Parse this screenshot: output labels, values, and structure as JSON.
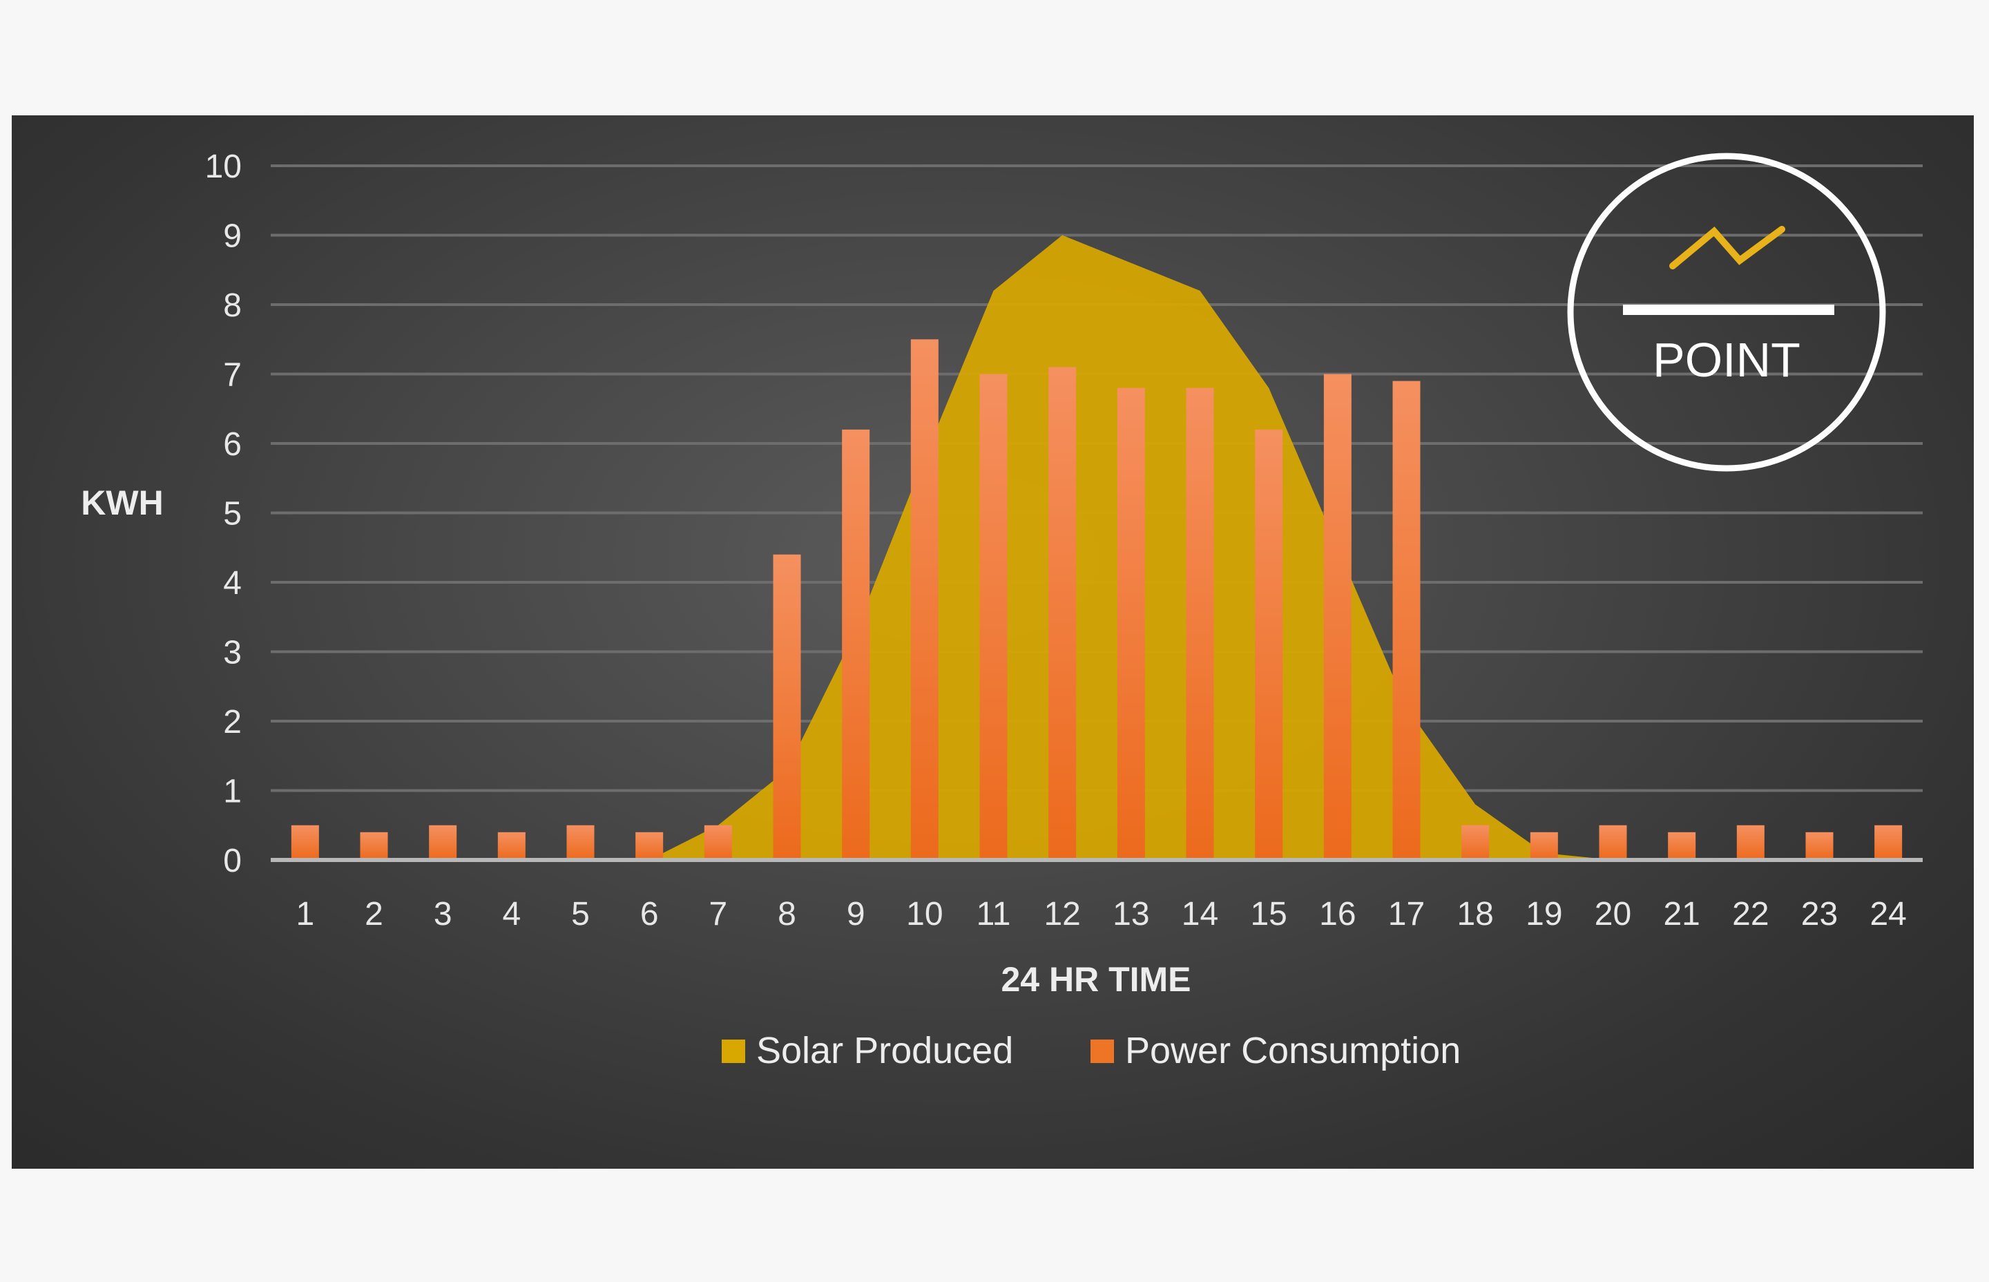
{
  "chart_data": {
    "type": "bar",
    "title": "",
    "xlabel": "24 HR TIME",
    "ylabel": "KWH",
    "ylim": [
      0,
      10
    ],
    "yticks": [
      0,
      1,
      2,
      3,
      4,
      5,
      6,
      7,
      8,
      9,
      10
    ],
    "grid": true,
    "legend_position": "bottom",
    "categories": [
      "1",
      "2",
      "3",
      "4",
      "5",
      "6",
      "7",
      "8",
      "9",
      "10",
      "11",
      "12",
      "13",
      "14",
      "15",
      "16",
      "17",
      "18",
      "19",
      "20",
      "21",
      "22",
      "23",
      "24"
    ],
    "series": [
      {
        "name": "Solar Produced",
        "kind": "area",
        "color": "#d9a800",
        "values": [
          0,
          0,
          0,
          0,
          0,
          0,
          0.5,
          1.3,
          3.3,
          5.8,
          8.2,
          9.0,
          8.6,
          8.2,
          6.8,
          4.5,
          2.2,
          0.8,
          0.1,
          0,
          0,
          0,
          0,
          0
        ]
      },
      {
        "name": "Power Consumption",
        "kind": "bar",
        "color": "#ef7526",
        "values": [
          0.5,
          0.4,
          0.5,
          0.4,
          0.5,
          0.4,
          0.5,
          4.4,
          6.2,
          7.5,
          7.0,
          7.1,
          6.8,
          6.8,
          6.2,
          7.0,
          6.9,
          0.5,
          0.4,
          0.5,
          0.4,
          0.5,
          0.4,
          0.5
        ]
      }
    ]
  },
  "logo": {
    "text": "POINT",
    "icon": "zigzag-line-icon",
    "accent_color": "#e8b21a"
  }
}
